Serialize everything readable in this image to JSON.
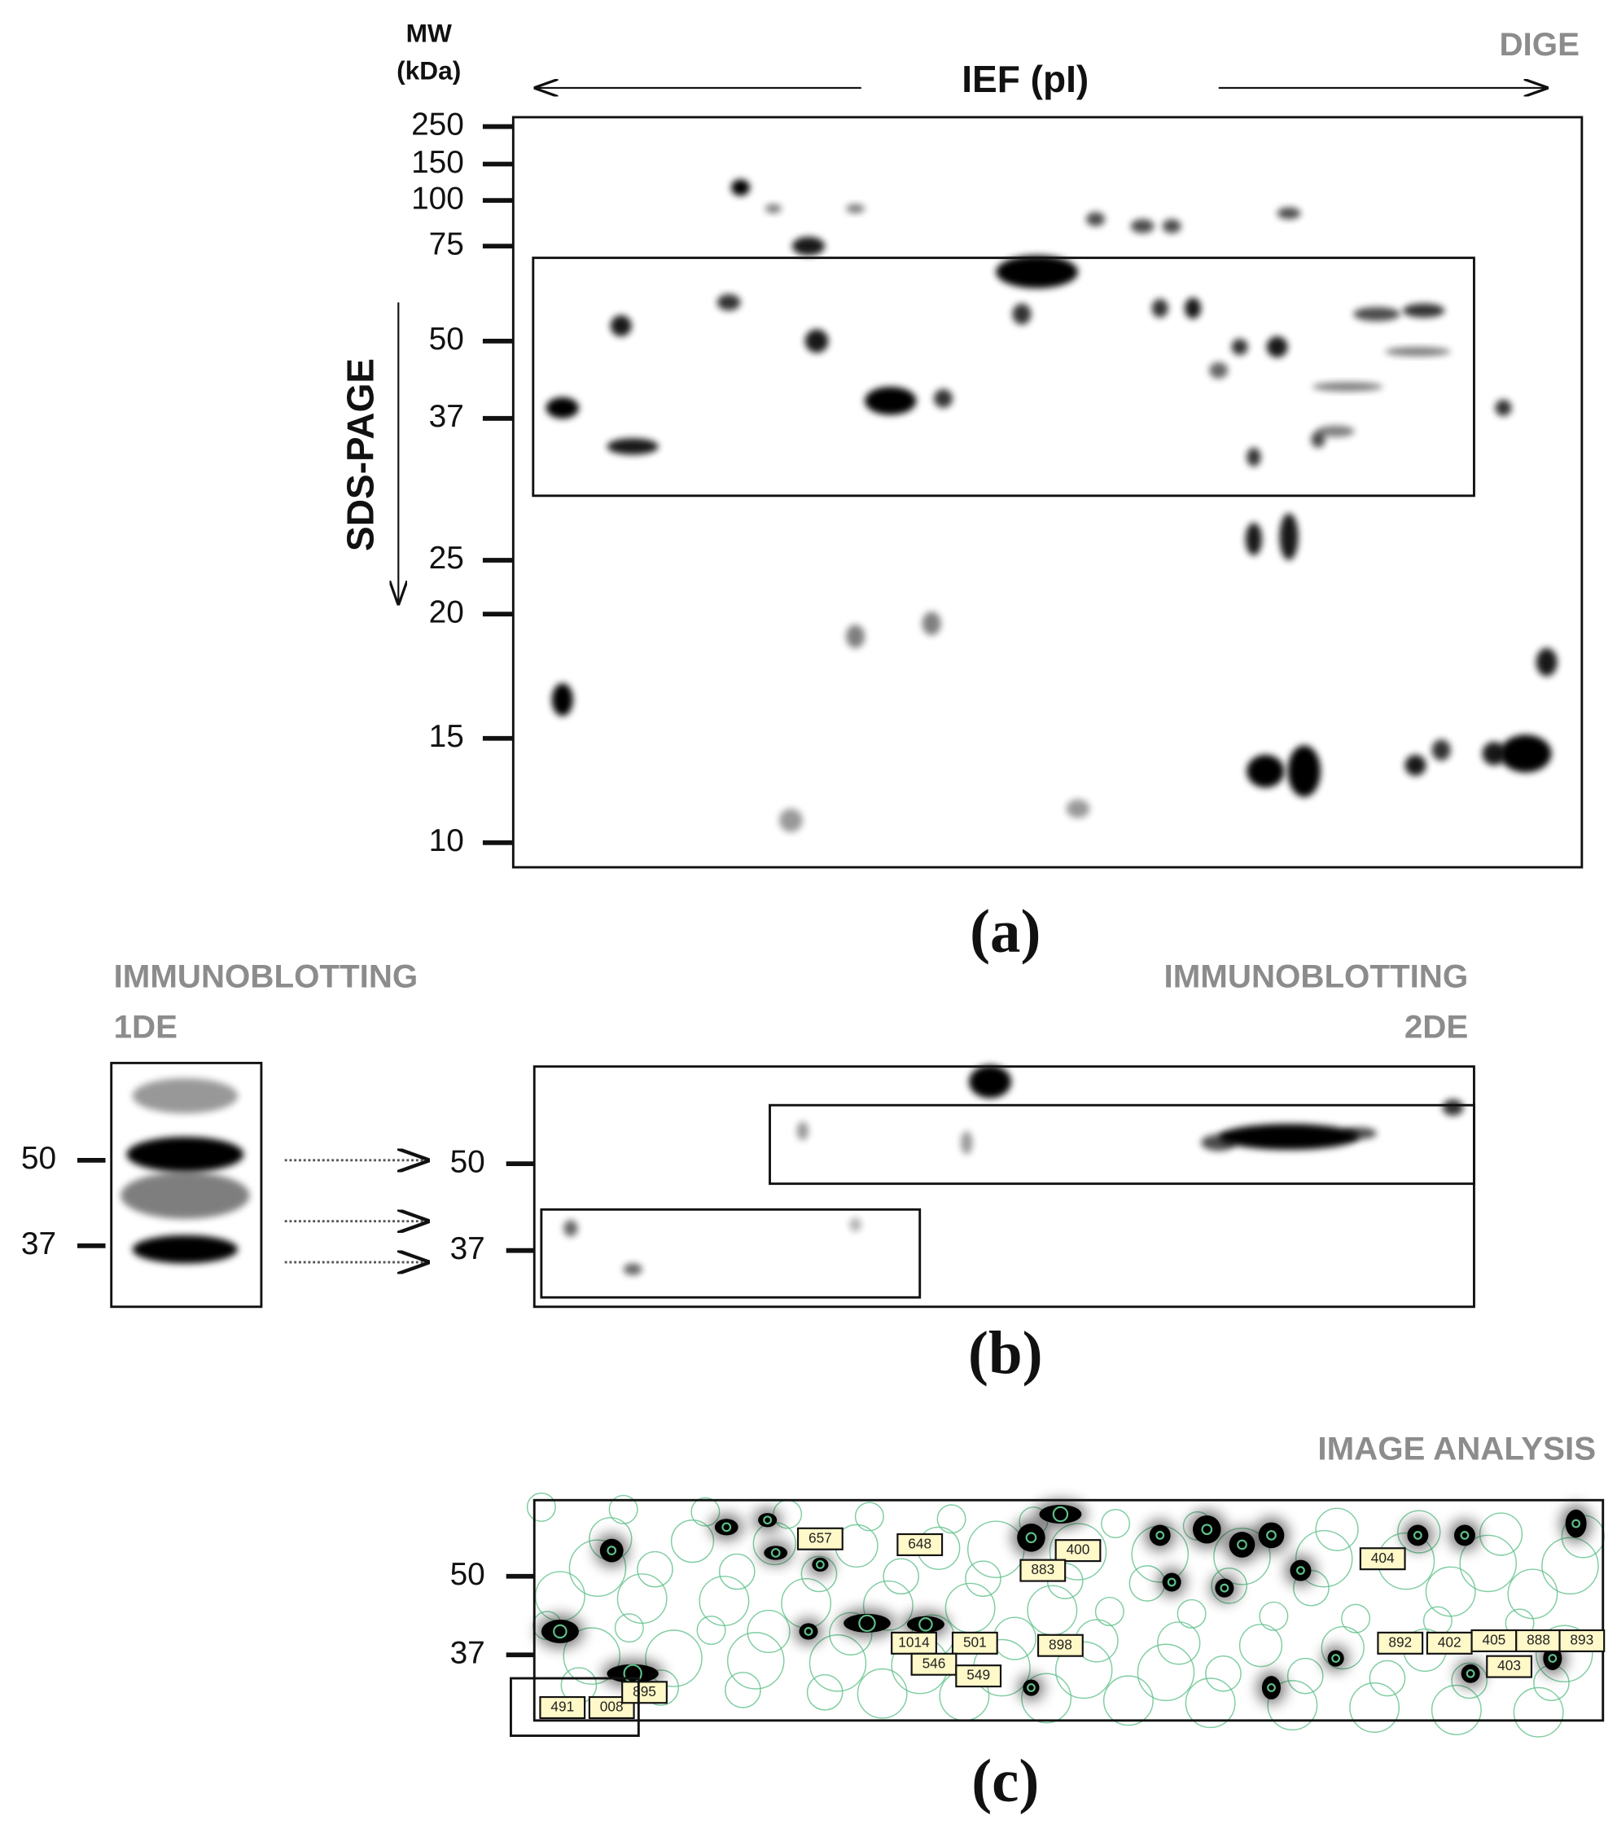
{
  "panel_a": {
    "mw_label": "MW",
    "mw_unit": "(kDa)",
    "ief_label": "IEF (pI)",
    "method": "DIGE",
    "sds_label": "SDS-PAGE",
    "mw_ticks": [
      250,
      150,
      100,
      75,
      50,
      37,
      25,
      20,
      15,
      10
    ],
    "caption": "(a)"
  },
  "panel_b": {
    "left_title": "IMMUNOBLOTTING",
    "left_subtitle": "1DE",
    "right_title": "IMMUNOBLOTTING",
    "right_subtitle": "2DE",
    "left_ticks": [
      50,
      37
    ],
    "right_ticks": [
      50,
      37
    ],
    "caption": "(b)"
  },
  "panel_c": {
    "title": "IMAGE ANALYSIS",
    "ticks": [
      50,
      37
    ],
    "spot_labels": [
      "657",
      "648",
      "400",
      "883",
      "404",
      "1014",
      "501",
      "898",
      "546",
      "549",
      "892",
      "402",
      "405",
      "888",
      "893",
      "403",
      "491",
      "008",
      "895"
    ],
    "caption": "(c)"
  }
}
